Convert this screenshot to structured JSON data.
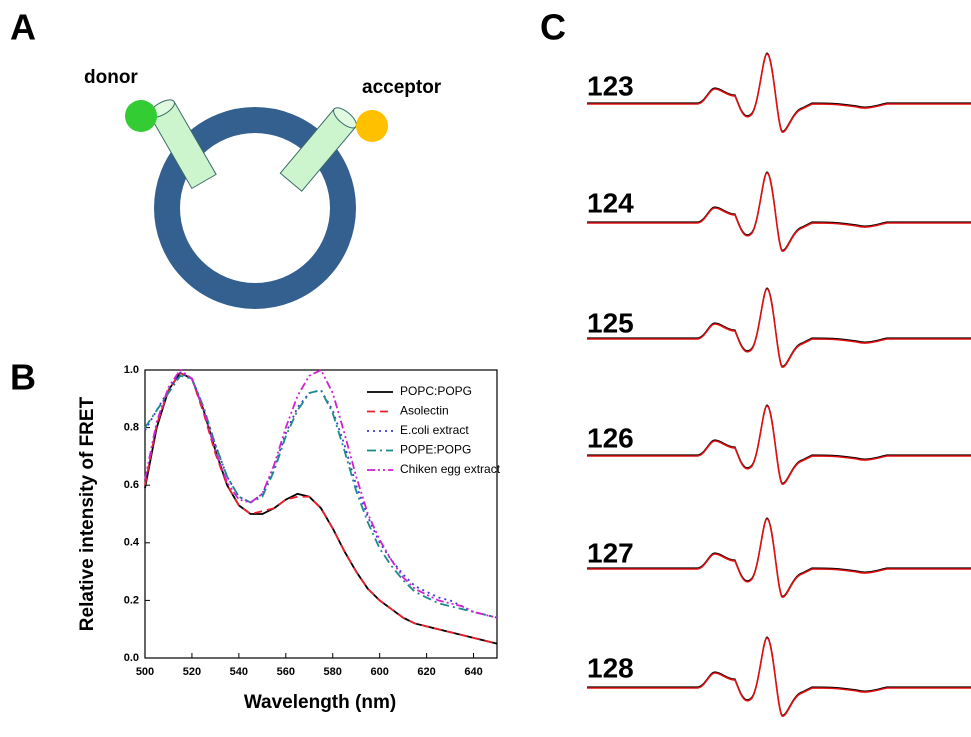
{
  "panel_labels": [
    "A",
    "B",
    "C"
  ],
  "diagram": {
    "donor": "donor",
    "acceptor": "acceptor"
  },
  "spectra": {
    "labels": [
      "123",
      "124",
      "125",
      "126",
      "127",
      "128"
    ]
  },
  "chart_data": {
    "type": "line",
    "xlabel": "Wavelength (nm)",
    "ylabel": "Relative intensity of FRET",
    "x": [
      500,
      505,
      510,
      515,
      520,
      525,
      530,
      535,
      540,
      545,
      550,
      555,
      560,
      565,
      570,
      575,
      580,
      585,
      590,
      595,
      600,
      605,
      610,
      615,
      620,
      625,
      630,
      635,
      640,
      645,
      650
    ],
    "xlim": [
      500,
      650
    ],
    "xticks": [
      500,
      520,
      540,
      560,
      580,
      600,
      620,
      640
    ],
    "ylim": [
      0,
      1
    ],
    "yticks": [
      {
        "value": 0,
        "label": "0.0"
      },
      0.2,
      0.4,
      0.6,
      0.8,
      {
        "value": 1,
        "label": "1.0"
      }
    ],
    "series": [
      {
        "name": "POPC:POPG",
        "color": "#000000",
        "line_style": "solid",
        "values": [
          0.59,
          0.8,
          0.93,
          0.99,
          0.97,
          0.86,
          0.72,
          0.6,
          0.53,
          0.5,
          0.5,
          0.52,
          0.55,
          0.57,
          0.56,
          0.52,
          0.45,
          0.37,
          0.3,
          0.24,
          0.2,
          0.17,
          0.14,
          0.12,
          0.11,
          0.1,
          0.09,
          0.08,
          0.07,
          0.06,
          0.05
        ]
      },
      {
        "name": "Asolectin",
        "color": "#e8202a",
        "line_style": "dashed",
        "values": [
          0.6,
          0.81,
          0.93,
          0.99,
          0.97,
          0.85,
          0.71,
          0.6,
          0.53,
          0.5,
          0.51,
          0.52,
          0.55,
          0.56,
          0.56,
          0.52,
          0.45,
          0.37,
          0.3,
          0.24,
          0.2,
          0.17,
          0.14,
          0.12,
          0.11,
          0.1,
          0.09,
          0.08,
          0.07,
          0.06,
          0.05
        ]
      },
      {
        "name": "E.coli extract",
        "color": "#3a3ad0",
        "line_style": "dotted",
        "values": [
          0.79,
          0.86,
          0.93,
          0.99,
          0.97,
          0.87,
          0.74,
          0.63,
          0.56,
          0.54,
          0.57,
          0.66,
          0.78,
          0.87,
          0.92,
          0.93,
          0.86,
          0.74,
          0.6,
          0.49,
          0.4,
          0.34,
          0.29,
          0.25,
          0.23,
          0.21,
          0.2,
          0.18,
          0.16,
          0.15,
          0.14
        ]
      },
      {
        "name": "POPE:POPG",
        "color": "#1a8a8a",
        "line_style": "dash-dot",
        "values": [
          0.8,
          0.86,
          0.92,
          0.98,
          0.97,
          0.87,
          0.74,
          0.63,
          0.56,
          0.54,
          0.56,
          0.65,
          0.77,
          0.86,
          0.92,
          0.93,
          0.85,
          0.72,
          0.58,
          0.47,
          0.38,
          0.32,
          0.27,
          0.23,
          0.21,
          0.19,
          0.18,
          0.17,
          0.16,
          0.15,
          0.14
        ]
      },
      {
        "name": "Chiken egg extract",
        "color": "#d020d0",
        "line_style": "dash-dot-dot",
        "values": [
          0.62,
          0.82,
          0.94,
          1.0,
          0.97,
          0.86,
          0.72,
          0.61,
          0.55,
          0.54,
          0.57,
          0.67,
          0.8,
          0.91,
          0.98,
          1.0,
          0.92,
          0.78,
          0.63,
          0.5,
          0.41,
          0.34,
          0.28,
          0.24,
          0.22,
          0.2,
          0.19,
          0.18,
          0.16,
          0.15,
          0.14
        ]
      }
    ],
    "legend": "upper right"
  }
}
